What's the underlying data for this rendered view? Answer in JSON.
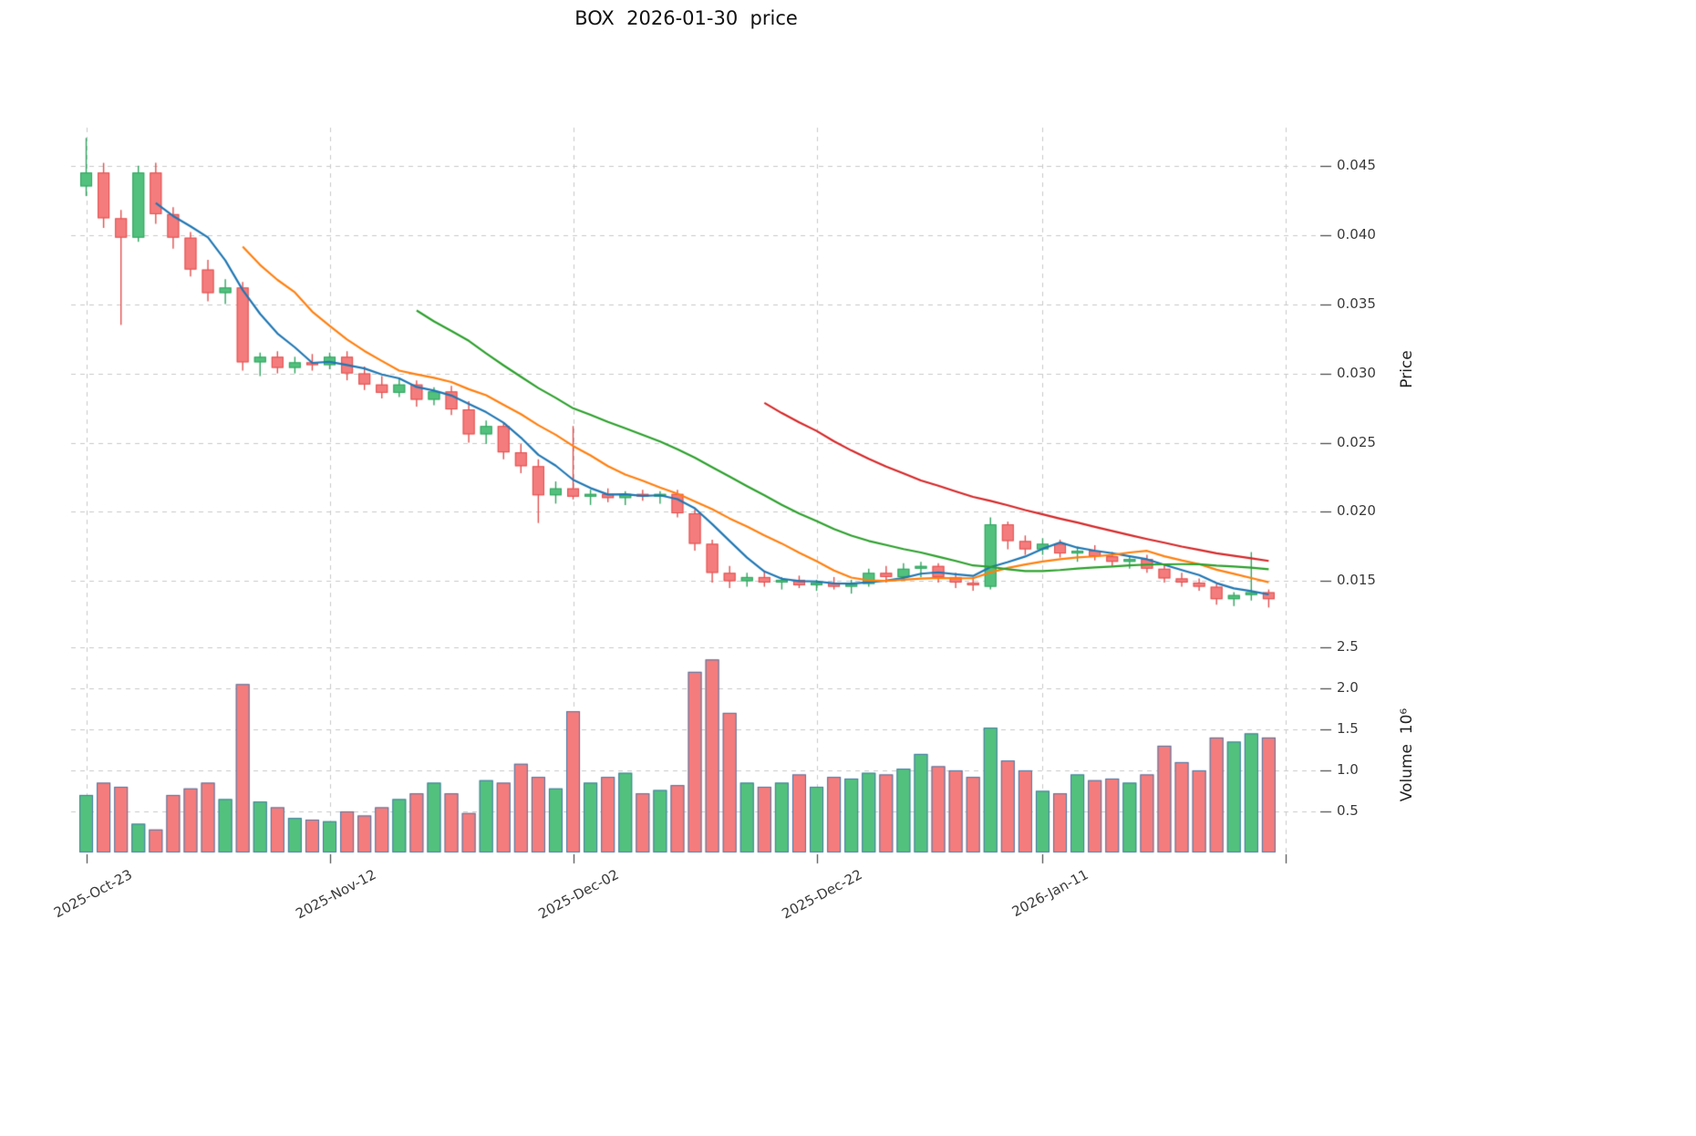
{
  "title": "BOX  2026-01-30  price",
  "colors": {
    "up": "#53c17e",
    "up_edge": "#2fa45e",
    "down": "#f57c7c",
    "down_edge": "#e14f4f",
    "volume_edge": "#4678a8",
    "grid": "#c9c9c9",
    "ma5": "#1f77b4",
    "ma10": "#ff7f0e",
    "ma20": "#2ca02c",
    "ma40": "#d62728",
    "background": "#ffffff"
  },
  "price_axis": {
    "label": "Price",
    "ticks": [
      0.045,
      0.04,
      0.035,
      0.03,
      0.025,
      0.02,
      0.015
    ]
  },
  "volume_axis": {
    "label": "Volume  10⁶",
    "ticks": [
      2.5,
      2.0,
      1.5,
      1.0,
      0.5
    ]
  },
  "x_axis": {
    "ticks": [
      {
        "label": "2025-Oct-23",
        "index": 0
      },
      {
        "label": "2025-Nov-12",
        "index": 14
      },
      {
        "label": "2025-Dec-02",
        "index": 28
      },
      {
        "label": "2025-Dec-22",
        "index": 42
      },
      {
        "label": "2026-Jan-11",
        "index": 55
      }
    ],
    "extra_gridline_index": 69
  },
  "chart_data": {
    "type": "candlestick",
    "symbol": "BOX",
    "as_of_date": "2026-01-30",
    "price_ylim": [
      0.0122,
      0.0484
    ],
    "volume_ylim": [
      0,
      2.72
    ],
    "dates": [
      "2025-10-23",
      "2025-10-24",
      "2025-10-27",
      "2025-10-28",
      "2025-10-29",
      "2025-10-30",
      "2025-10-31",
      "2025-11-03",
      "2025-11-04",
      "2025-11-05",
      "2025-11-06",
      "2025-11-07",
      "2025-11-10",
      "2025-11-11",
      "2025-11-12",
      "2025-11-13",
      "2025-11-14",
      "2025-11-17",
      "2025-11-18",
      "2025-11-19",
      "2025-11-20",
      "2025-11-21",
      "2025-11-24",
      "2025-11-25",
      "2025-11-26",
      "2025-11-27",
      "2025-11-28",
      "2025-12-01",
      "2025-12-02",
      "2025-12-03",
      "2025-12-04",
      "2025-12-05",
      "2025-12-08",
      "2025-12-09",
      "2025-12-10",
      "2025-12-11",
      "2025-12-12",
      "2025-12-15",
      "2025-12-16",
      "2025-12-17",
      "2025-12-18",
      "2025-12-19",
      "2025-12-22",
      "2025-12-23",
      "2025-12-24",
      "2025-12-26",
      "2025-12-29",
      "2025-12-30",
      "2025-12-31",
      "2026-01-02",
      "2026-01-05",
      "2026-01-06",
      "2026-01-07",
      "2026-01-08",
      "2026-01-09",
      "2026-01-12",
      "2026-01-13",
      "2026-01-14",
      "2026-01-15",
      "2026-01-16",
      "2026-01-20",
      "2026-01-21",
      "2026-01-22",
      "2026-01-23",
      "2026-01-26",
      "2026-01-27",
      "2026-01-28",
      "2026-01-29",
      "2026-01-30"
    ],
    "open": [
      0.0435,
      0.0445,
      0.0412,
      0.0398,
      0.0445,
      0.0415,
      0.0398,
      0.0375,
      0.0358,
      0.0362,
      0.0308,
      0.0312,
      0.0304,
      0.0308,
      0.0306,
      0.0312,
      0.03,
      0.0292,
      0.0286,
      0.0292,
      0.0281,
      0.0287,
      0.0274,
      0.0256,
      0.0262,
      0.0243,
      0.0233,
      0.0212,
      0.0217,
      0.0211,
      0.0213,
      0.021,
      0.0213,
      0.0211,
      0.0213,
      0.0199,
      0.0177,
      0.0156,
      0.015,
      0.0153,
      0.0149,
      0.0151,
      0.0147,
      0.0149,
      0.0146,
      0.0148,
      0.0156,
      0.0153,
      0.0159,
      0.0161,
      0.0153,
      0.0149,
      0.0146,
      0.0191,
      0.0179,
      0.0173,
      0.0177,
      0.017,
      0.0172,
      0.0168,
      0.0164,
      0.0166,
      0.0159,
      0.0152,
      0.0149,
      0.0146,
      0.0137,
      0.014,
      0.0142
    ],
    "high": [
      0.047,
      0.0452,
      0.0418,
      0.045,
      0.0452,
      0.042,
      0.0402,
      0.0382,
      0.0368,
      0.0366,
      0.0315,
      0.0316,
      0.0312,
      0.0314,
      0.0315,
      0.0316,
      0.0305,
      0.0298,
      0.0296,
      0.0295,
      0.029,
      0.0291,
      0.028,
      0.0266,
      0.0264,
      0.0249,
      0.0238,
      0.0222,
      0.0262,
      0.0216,
      0.0217,
      0.0215,
      0.0216,
      0.0215,
      0.0216,
      0.0202,
      0.018,
      0.0161,
      0.0156,
      0.0157,
      0.0153,
      0.0154,
      0.0151,
      0.0153,
      0.0151,
      0.0159,
      0.0161,
      0.0163,
      0.0164,
      0.0163,
      0.0156,
      0.0153,
      0.0196,
      0.0193,
      0.0183,
      0.0181,
      0.018,
      0.0175,
      0.0176,
      0.0171,
      0.0168,
      0.0169,
      0.0162,
      0.0156,
      0.0152,
      0.0148,
      0.0142,
      0.0171,
      0.0144
    ],
    "low": [
      0.0428,
      0.0405,
      0.0335,
      0.0395,
      0.0408,
      0.039,
      0.037,
      0.0352,
      0.035,
      0.0302,
      0.0298,
      0.03,
      0.03,
      0.0302,
      0.0303,
      0.0295,
      0.0288,
      0.0282,
      0.0283,
      0.0276,
      0.0277,
      0.027,
      0.025,
      0.0249,
      0.0238,
      0.0228,
      0.0192,
      0.0206,
      0.0209,
      0.0205,
      0.0207,
      0.0205,
      0.0208,
      0.0206,
      0.0196,
      0.0172,
      0.0149,
      0.0145,
      0.0146,
      0.0146,
      0.0144,
      0.0145,
      0.0143,
      0.0144,
      0.0141,
      0.0146,
      0.0149,
      0.0151,
      0.0153,
      0.0149,
      0.0145,
      0.0143,
      0.0144,
      0.0173,
      0.0169,
      0.0169,
      0.0167,
      0.0164,
      0.0165,
      0.0161,
      0.0159,
      0.0156,
      0.0149,
      0.0146,
      0.0143,
      0.0133,
      0.0132,
      0.0136,
      0.0131
    ],
    "close": [
      0.0445,
      0.0412,
      0.0398,
      0.0445,
      0.0415,
      0.0398,
      0.0375,
      0.0358,
      0.0362,
      0.0308,
      0.0312,
      0.0304,
      0.0308,
      0.0306,
      0.0312,
      0.03,
      0.0292,
      0.0286,
      0.0292,
      0.0281,
      0.0287,
      0.0274,
      0.0256,
      0.0262,
      0.0243,
      0.0233,
      0.0212,
      0.0217,
      0.0211,
      0.0213,
      0.021,
      0.0213,
      0.0211,
      0.0213,
      0.0199,
      0.0177,
      0.0156,
      0.015,
      0.0153,
      0.0149,
      0.0151,
      0.0147,
      0.0149,
      0.0146,
      0.0148,
      0.0156,
      0.0153,
      0.0159,
      0.0161,
      0.0153,
      0.0149,
      0.0147,
      0.0191,
      0.0179,
      0.0173,
      0.0177,
      0.017,
      0.0172,
      0.0168,
      0.0164,
      0.0166,
      0.0159,
      0.0152,
      0.0149,
      0.0146,
      0.0137,
      0.014,
      0.0142,
      0.0137
    ],
    "volume_millions": [
      0.7,
      0.85,
      0.8,
      0.35,
      0.28,
      0.7,
      0.78,
      0.85,
      0.65,
      2.05,
      0.62,
      0.55,
      0.42,
      0.4,
      0.38,
      0.5,
      0.45,
      0.55,
      0.65,
      0.72,
      0.85,
      0.72,
      0.48,
      0.88,
      0.85,
      1.08,
      0.92,
      0.78,
      1.72,
      0.85,
      0.92,
      0.97,
      0.72,
      0.76,
      0.82,
      2.2,
      2.35,
      1.7,
      0.85,
      0.8,
      0.85,
      0.95,
      0.8,
      0.92,
      0.9,
      0.97,
      0.95,
      1.02,
      1.2,
      1.05,
      1.0,
      0.92,
      1.52,
      1.12,
      1.0,
      0.75,
      0.72,
      0.95,
      0.88,
      0.9,
      0.85,
      0.95,
      1.3,
      1.1,
      1.0,
      1.4,
      1.35,
      1.45,
      1.4
    ],
    "moving_averages": [
      {
        "window": 5,
        "color": "ma5"
      },
      {
        "window": 10,
        "color": "ma10"
      },
      {
        "window": 20,
        "color": "ma20"
      },
      {
        "window": 40,
        "color": "ma40"
      }
    ]
  }
}
